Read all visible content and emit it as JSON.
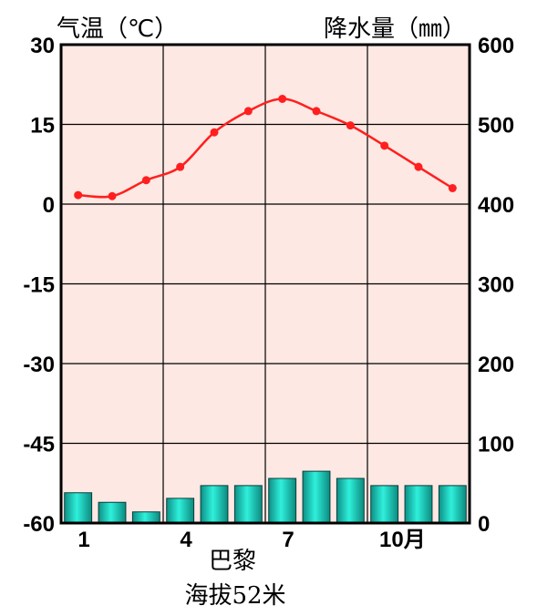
{
  "chart_data": {
    "type": "climate",
    "left_axis_title": "气温（℃）",
    "right_axis_title": "降水量（㎜）",
    "temp_ylim": [
      -60,
      30
    ],
    "temp_ticks": [
      "30",
      "15",
      "0",
      "-15",
      "-30",
      "-45",
      "-60"
    ],
    "precip_ylim": [
      0,
      600
    ],
    "precip_ticks": [
      "600",
      "500",
      "400",
      "300",
      "200",
      "100",
      "0"
    ],
    "x_tick_labels": [
      "1",
      "4",
      "7",
      "10月"
    ],
    "months": [
      1,
      2,
      3,
      4,
      5,
      6,
      7,
      8,
      9,
      10,
      11,
      12
    ],
    "temperature": [
      1.7,
      1.5,
      4.5,
      7.0,
      13.5,
      17.5,
      19.8,
      17.5,
      14.8,
      11.0,
      7.0,
      3.0
    ],
    "precipitation": [
      38,
      26,
      14,
      31,
      47,
      47,
      56,
      65,
      56,
      47,
      47,
      47
    ],
    "temp_color": "#ff1f1f",
    "bar_color": "#1ad6c2",
    "plot_background": "#fde8e3",
    "grid": true,
    "station": "巴黎",
    "elevation": "海拔52米"
  }
}
